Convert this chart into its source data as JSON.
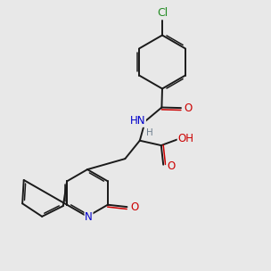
{
  "background_color": "#e8e8e8",
  "bond_color": "#1a1a1a",
  "oxygen_color": "#cc0000",
  "nitrogen_color": "#0000cc",
  "chlorine_color": "#228B22",
  "hydrogen_color": "#708090",
  "fig_width": 3.0,
  "fig_height": 3.0,
  "dpi": 100,
  "lw": 1.4,
  "lw_inner": 1.1,
  "fs": 8.5
}
